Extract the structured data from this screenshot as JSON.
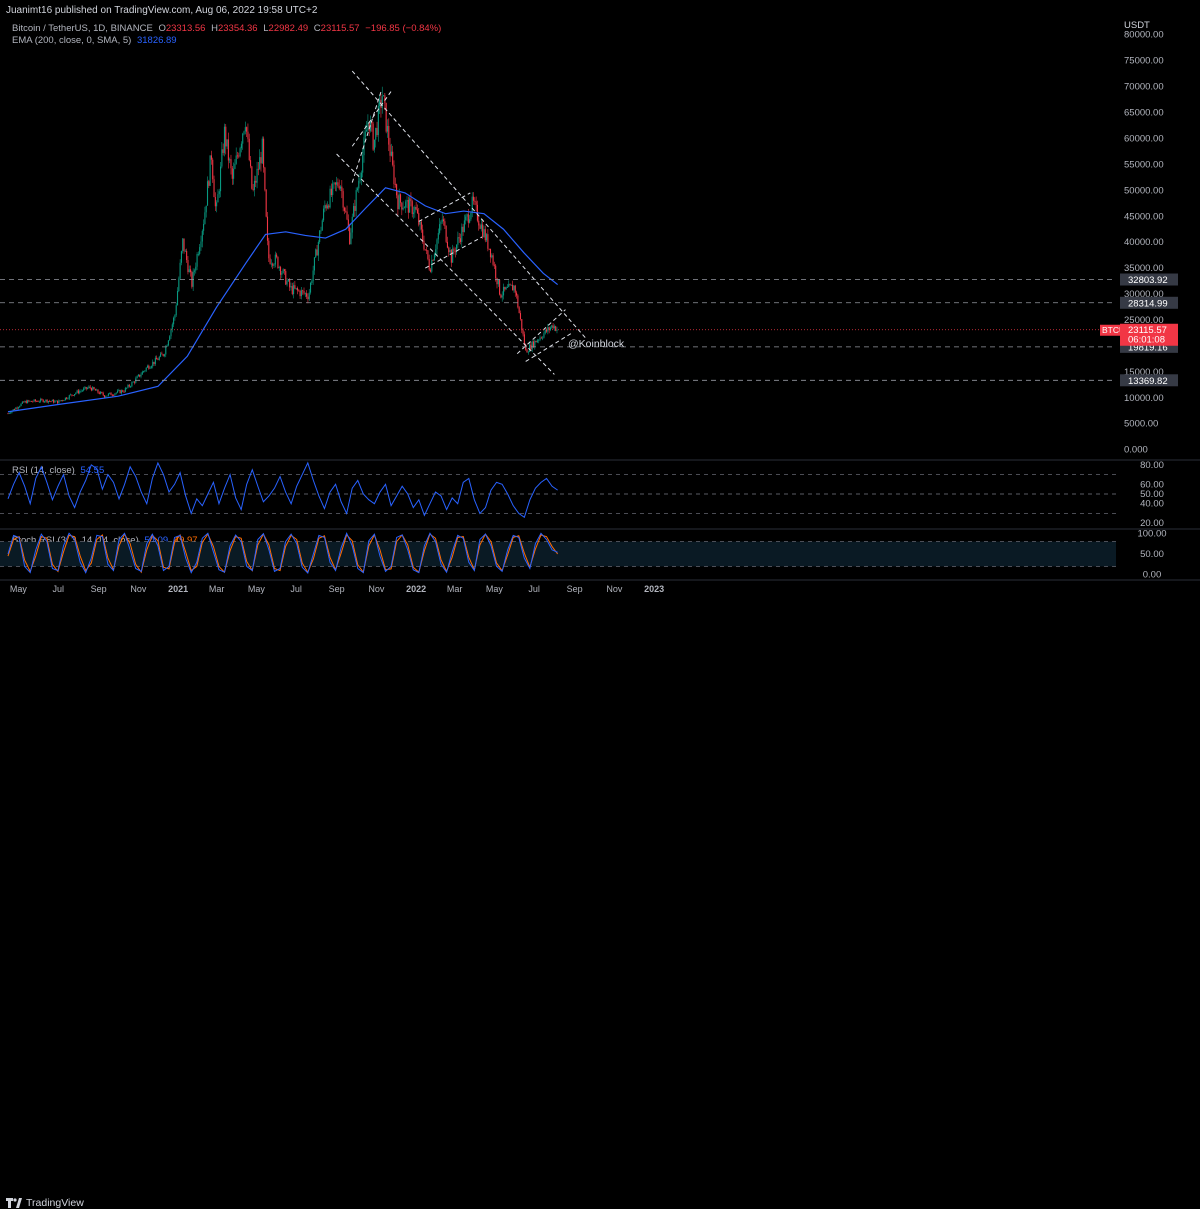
{
  "header": {
    "published": "Juanimt16 published on TradingView.com, Aug 06, 2022 19:58 UTC+2"
  },
  "legend": {
    "symbol": "Bitcoin / TetherUS, 1D, BINANCE",
    "o_label": "O",
    "o_value": "23313.56",
    "h_label": "H",
    "h_value": "23354.36",
    "l_label": "L",
    "l_value": "22982.49",
    "c_label": "C",
    "c_value": "23115.57",
    "change": "−196.85 (−0.84%)",
    "ema_label": "EMA (200, close, 0, SMA, 5)",
    "ema_value": "31826.89",
    "rsi_label": "RSI (14, close)",
    "rsi_value": "54.55",
    "stoch_label": "Stoch RSI (3, 3, 14, 14, close)",
    "stoch_k": "54.09",
    "stoch_d": "49.97"
  },
  "watermark": "@Koinblock",
  "footer": {
    "brand": "TradingView"
  },
  "colors": {
    "up": "#089981",
    "down": "#f23645",
    "ema": "#2962ff",
    "rsi": "#2962ff",
    "stoch_k": "#2962ff",
    "stoch_d": "#ff6d00"
  },
  "chart_data": [
    {
      "type": "candlestick",
      "title": "Bitcoin / TetherUS, 1D, BINANCE",
      "currency": "USDT",
      "ylim": [
        -2000,
        84000
      ],
      "y_ticks": [
        0,
        5000,
        10000,
        15000,
        20000,
        25000,
        30000,
        35000,
        40000,
        45000,
        50000,
        55000,
        60000,
        65000,
        70000,
        75000,
        80000
      ],
      "y_tick_labels": [
        "0.000",
        "5000.00",
        "10000.00",
        "15000.00",
        "20000.00",
        "25000.00",
        "30000.00",
        "35000.00",
        "40000.00",
        "45000.00",
        "50000.00",
        "55000.00",
        "60000.00",
        "65000.00",
        "70000.00",
        "75000.00",
        "80000.00"
      ],
      "x_tick_labels": [
        "May",
        "Jul",
        "Sep",
        "Nov",
        "2021",
        "Mar",
        "May",
        "Jul",
        "Sep",
        "Nov",
        "2022",
        "Mar",
        "May",
        "Jul",
        "Sep",
        "Nov",
        "2023"
      ],
      "price_path": [
        [
          "2020-04-15",
          7000
        ],
        [
          "2020-05-10",
          9200
        ],
        [
          "2020-06-10",
          9500
        ],
        [
          "2020-07-01",
          9200
        ],
        [
          "2020-07-28",
          11000
        ],
        [
          "2020-08-18",
          12000
        ],
        [
          "2020-09-10",
          10400
        ],
        [
          "2020-10-10",
          11400
        ],
        [
          "2020-10-25",
          13100
        ],
        [
          "2020-11-15",
          16000
        ],
        [
          "2020-11-26",
          17000
        ],
        [
          "2020-12-10",
          18500
        ],
        [
          "2020-12-27",
          26000
        ],
        [
          "2021-01-08",
          40000
        ],
        [
          "2021-01-22",
          32000
        ],
        [
          "2021-02-10",
          45000
        ],
        [
          "2021-02-21",
          57000
        ],
        [
          "2021-02-28",
          45000
        ],
        [
          "2021-03-13",
          61000
        ],
        [
          "2021-03-25",
          52000
        ],
        [
          "2021-04-14",
          64000
        ],
        [
          "2021-04-25",
          49000
        ],
        [
          "2021-05-10",
          58000
        ],
        [
          "2021-05-19",
          37000
        ],
        [
          "2021-06-01",
          36500
        ],
        [
          "2021-06-22",
          31000
        ],
        [
          "2021-07-20",
          29800
        ],
        [
          "2021-08-14",
          47000
        ],
        [
          "2021-09-06",
          52000
        ],
        [
          "2021-09-21",
          41000
        ],
        [
          "2021-10-20",
          64000
        ],
        [
          "2021-10-28",
          59000
        ],
        [
          "2021-11-10",
          68500
        ],
        [
          "2021-11-26",
          54000
        ],
        [
          "2021-12-04",
          48000
        ],
        [
          "2021-12-31",
          46300
        ],
        [
          "2022-01-22",
          35000
        ],
        [
          "2022-02-10",
          44500
        ],
        [
          "2022-02-24",
          37000
        ],
        [
          "2022-03-29",
          47500
        ],
        [
          "2022-04-26",
          38000
        ],
        [
          "2022-05-10",
          30000
        ],
        [
          "2022-06-01",
          31500
        ],
        [
          "2022-06-18",
          19000
        ],
        [
          "2022-07-08",
          21500
        ],
        [
          "2022-07-30",
          24000
        ],
        [
          "2022-08-06",
          23115
        ]
      ],
      "ema_200": [
        [
          "2020-04-15",
          7300
        ],
        [
          "2020-07-01",
          8700
        ],
        [
          "2020-10-01",
          10300
        ],
        [
          "2020-12-01",
          12200
        ],
        [
          "2021-01-15",
          18000
        ],
        [
          "2021-03-01",
          27500
        ],
        [
          "2021-04-15",
          36000
        ],
        [
          "2021-05-15",
          41500
        ],
        [
          "2021-06-15",
          42000
        ],
        [
          "2021-07-15",
          41300
        ],
        [
          "2021-08-15",
          40800
        ],
        [
          "2021-09-15",
          42500
        ],
        [
          "2021-10-15",
          46500
        ],
        [
          "2021-11-15",
          50500
        ],
        [
          "2021-12-15",
          49500
        ],
        [
          "2022-01-15",
          47000
        ],
        [
          "2022-02-15",
          45500
        ],
        [
          "2022-03-15",
          46000
        ],
        [
          "2022-04-15",
          45500
        ],
        [
          "2022-05-15",
          42500
        ],
        [
          "2022-06-15",
          38000
        ],
        [
          "2022-07-15",
          34000
        ],
        [
          "2022-08-06",
          31827
        ]
      ],
      "horizontal_levels": [
        {
          "value": 32803.92,
          "label": "32803.92"
        },
        {
          "value": 28314.99,
          "label": "28314.99"
        },
        {
          "value": 19819.16,
          "label": "19819.16"
        },
        {
          "value": 13369.82,
          "label": "13369.82"
        }
      ],
      "current_price": {
        "value": 23115.57,
        "label": "23115.57",
        "symbol": "BTCUSDT",
        "countdown": "06:01:08"
      },
      "channels": [
        {
          "from": [
            "2021-09-01",
            57000
          ],
          "to": [
            "2022-08-01",
            14500
          ]
        },
        {
          "from": [
            "2021-09-25",
            73000
          ],
          "to": [
            "2022-09-18",
            21500
          ]
        },
        {
          "from": [
            "2021-09-25",
            51500
          ],
          "to": [
            "2021-11-08",
            69000
          ]
        },
        {
          "from": [
            "2021-09-25",
            58500
          ],
          "to": [
            "2021-11-26",
            69500
          ]
        },
        {
          "from": [
            "2022-01-05",
            44000
          ],
          "to": [
            "2022-03-25",
            49500
          ]
        },
        {
          "from": [
            "2022-01-15",
            35000
          ],
          "to": [
            "2022-04-12",
            41000
          ]
        },
        {
          "from": [
            "2022-06-05",
            18500
          ],
          "to": [
            "2022-08-18",
            27000
          ]
        },
        {
          "from": [
            "2022-06-18",
            17000
          ],
          "to": [
            "2022-08-28",
            22500
          ]
        }
      ]
    },
    {
      "type": "line",
      "title": "RSI (14, close)",
      "ylim": [
        15,
        85
      ],
      "y_ticks": [
        20,
        40,
        50,
        60,
        80
      ],
      "y_tick_labels": [
        "20.00",
        "40.00",
        "50.00",
        "60.00",
        "80.00"
      ],
      "bands": [
        70,
        50,
        30
      ],
      "current": 54.55,
      "series": [
        {
          "values": [
            45,
            60,
            72,
            58,
            40,
            66,
            78,
            62,
            44,
            58,
            70,
            48,
            36,
            52,
            64,
            80,
            76,
            55,
            70,
            62,
            45,
            60,
            78,
            68,
            52,
            40,
            66,
            82,
            70,
            52,
            60,
            72,
            48,
            30,
            45,
            38,
            50,
            62,
            40,
            56,
            70,
            46,
            34,
            60,
            75,
            58,
            42,
            48,
            56,
            68,
            52,
            40,
            58,
            70,
            82,
            64,
            48,
            35,
            52,
            60,
            42,
            30,
            56,
            64,
            50,
            44,
            40,
            52,
            60,
            38,
            48,
            58,
            50,
            36,
            44,
            28,
            40,
            52,
            48,
            34,
            46,
            40,
            62,
            66,
            44,
            30,
            36,
            54,
            62,
            60,
            50,
            38,
            30,
            26,
            44,
            56,
            62,
            66,
            58,
            54
          ]
        }
      ]
    },
    {
      "type": "line",
      "title": "Stoch RSI (3, 3, 14, 14, close)",
      "ylim": [
        -8,
        108
      ],
      "y_ticks": [
        0,
        50,
        100
      ],
      "y_tick_labels": [
        "0.00",
        "50.00",
        "100.00"
      ],
      "bands": [
        80,
        20
      ],
      "current_k": 54.09,
      "current_d": 49.97,
      "series": [
        {
          "values": [
            50,
            95,
            90,
            20,
            5,
            60,
            98,
            80,
            15,
            10,
            70,
            100,
            85,
            30,
            5,
            40,
            95,
            92,
            25,
            10,
            85,
            100,
            60,
            15,
            8,
            75,
            98,
            70,
            10,
            20,
            90,
            95,
            40,
            5,
            30,
            88,
            100,
            55,
            12,
            6,
            70,
            96,
            80,
            20,
            10,
            85,
            99,
            60,
            8,
            15,
            80,
            98,
            75,
            18,
            4,
            50,
            95,
            90,
            30,
            10,
            65,
            100,
            70,
            15,
            5,
            82,
            98,
            45,
            8,
            20,
            90,
            96,
            60,
            12,
            5,
            70,
            100,
            80,
            25,
            6,
            55,
            95,
            88,
            30,
            10,
            85,
            98,
            70,
            20,
            8,
            60,
            95,
            90,
            40,
            15,
            75,
            100,
            85,
            60,
            54
          ]
        },
        {
          "values": [
            45,
            85,
            92,
            35,
            8,
            45,
            92,
            88,
            25,
            8,
            55,
            95,
            92,
            45,
            10,
            28,
            85,
            96,
            40,
            12,
            70,
            98,
            75,
            25,
            6,
            60,
            95,
            82,
            18,
            14,
            78,
            96,
            55,
            10,
            20,
            78,
            98,
            68,
            20,
            6,
            58,
            92,
            88,
            32,
            10,
            72,
            98,
            72,
            15,
            10,
            68,
            95,
            85,
            28,
            6,
            38,
            88,
            94,
            42,
            12,
            52,
            96,
            82,
            24,
            6,
            70,
            96,
            60,
            12,
            14,
            80,
            96,
            72,
            18,
            6,
            58,
            98,
            88,
            36,
            8,
            42,
            90,
            92,
            42,
            12,
            72,
            98,
            80,
            28,
            10,
            48,
            90,
            94,
            52,
            18,
            62,
            96,
            92,
            68,
            50
          ]
        }
      ]
    }
  ]
}
